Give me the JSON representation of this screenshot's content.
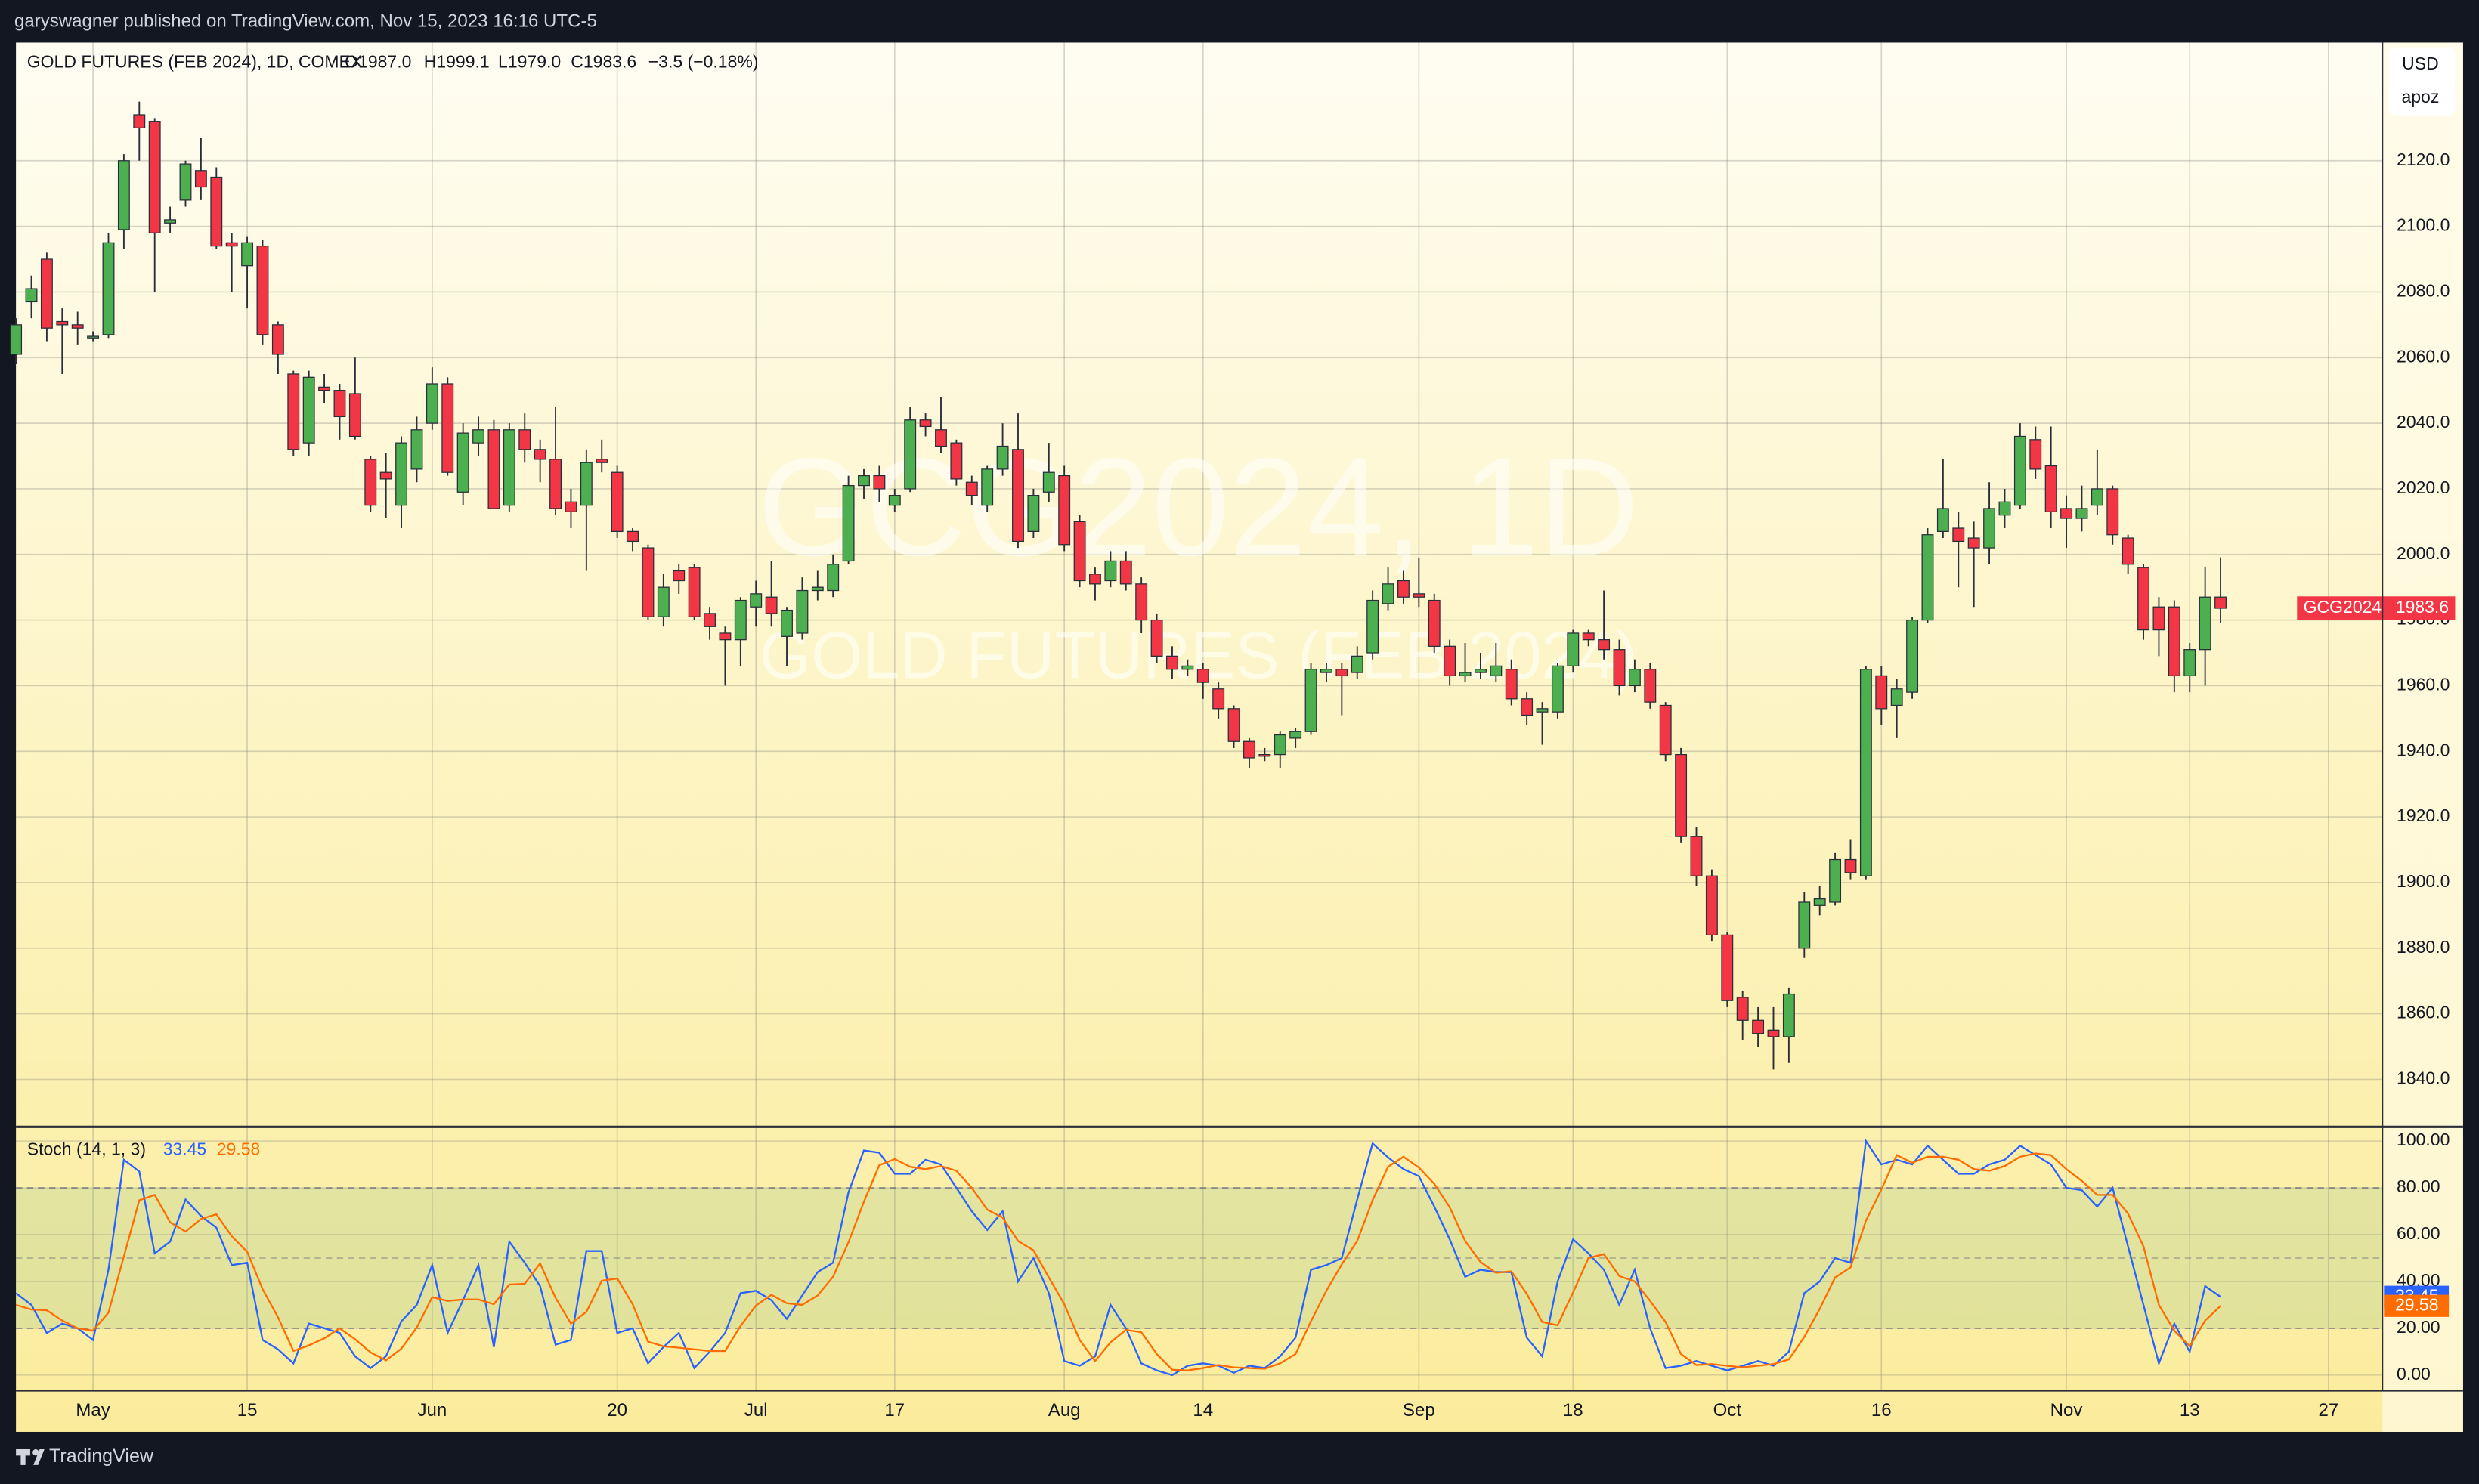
{
  "header": {
    "text": "garyswagner published on TradingView.com, Nov 15, 2023 16:16 UTC-5"
  },
  "chart_data": [
    {
      "type": "candlestick",
      "title": "GOLD FUTURES (FEB 2024), 1D, COMEX",
      "legend": [
        "O1987.0",
        "H1999.1",
        "L1979.0",
        "C1983.6",
        "−3.5 (−0.18%)"
      ],
      "watermark": [
        "GCG2024, 1D",
        "GOLD FUTURES (FEB 2024)"
      ],
      "currency": "USD",
      "scale_label": "apoz",
      "symbol": "GCG2024",
      "up_color": "#4caf50",
      "down_color": "#f23645",
      "open": [
        2061,
        2077,
        2090,
        2071,
        2070,
        2066,
        2067,
        2099,
        2134,
        2132,
        2101,
        2108,
        2117,
        2115,
        2095,
        2088,
        2094,
        2070,
        2055,
        2034,
        2051,
        2050,
        2049,
        2029,
        2025,
        2015,
        2026,
        2040,
        2052,
        2019,
        2034,
        2038,
        2015,
        2038,
        2032,
        2029,
        2016,
        2015,
        2029,
        2025,
        2007,
        2002,
        1981,
        1995,
        1996,
        1982,
        1976,
        1974,
        1984,
        1987,
        1975,
        1976,
        1989,
        1989,
        1998,
        2021,
        2024,
        2015,
        2020,
        2041,
        2038,
        2034,
        2022,
        2015,
        2026,
        2032,
        2007,
        2019,
        2024,
        2010,
        1994,
        1992,
        1998,
        1991,
        1980,
        1969,
        1965,
        1965,
        1959,
        1953,
        1943,
        1939,
        1939,
        1944,
        1946,
        1964,
        1965,
        1964,
        1970,
        1985,
        1992,
        1988,
        1986,
        1972,
        1963,
        1964,
        1963,
        1965,
        1956,
        1952,
        1952,
        1966,
        1976,
        1974,
        1971,
        1960,
        1965,
        1954,
        1939,
        1914,
        1902,
        1884,
        1865,
        1858,
        1855,
        1853,
        1880,
        1893,
        1894,
        1907,
        1902,
        1963,
        1954,
        1958,
        1980,
        2007,
        2008,
        2005,
        2002,
        2012,
        2015,
        2035,
        2027,
        2014,
        2011,
        2015,
        2020,
        2005,
        1996,
        1984,
        1984,
        1963,
        1971,
        1987.0
      ],
      "high": [
        2072,
        2085,
        2092,
        2075,
        2074,
        2068,
        2098,
        2122,
        2138,
        2133,
        2106,
        2120,
        2127,
        2118,
        2098,
        2097,
        2096,
        2071,
        2056,
        2056,
        2055,
        2052,
        2060,
        2030,
        2031,
        2036,
        2042,
        2057,
        2054,
        2040,
        2042,
        2041,
        2040,
        2043,
        2035,
        2045,
        2020,
        2032,
        2035,
        2027,
        2008,
        2003,
        1994,
        1997,
        1997,
        1984,
        1978,
        1987,
        1992,
        1998,
        1984,
        1993,
        1995,
        2000,
        2024,
        2026,
        2027,
        2020,
        2045,
        2043,
        2048,
        2035,
        2024,
        2027,
        2040,
        2043,
        2020,
        2034,
        2027,
        2012,
        1996,
        2001,
        2001,
        1993,
        1982,
        1972,
        1968,
        1967,
        1961,
        1954,
        1944,
        1941,
        1946,
        1947,
        1967,
        1967,
        1967,
        1972,
        1989,
        1996,
        1995,
        1999,
        1988,
        1974,
        1973,
        1970,
        1973,
        1968,
        1958,
        1955,
        1967,
        1977,
        1977,
        1989,
        1974,
        1968,
        1967,
        1955,
        1941,
        1917,
        1904,
        1885,
        1867,
        1862,
        1862,
        1868,
        1897,
        1899,
        1909,
        1913,
        1966,
        1966,
        1962,
        1981,
        2008,
        2029,
        2013,
        2010,
        2022,
        2020,
        2040,
        2039,
        2039,
        2018,
        2021,
        2032,
        2021,
        2006,
        1997,
        1987,
        1986,
        1973,
        1996,
        1999.1
      ],
      "low": [
        2058,
        2072,
        2065,
        2055,
        2064,
        2065,
        2066,
        2093,
        2120,
        2080,
        2098,
        2106,
        2108,
        2093,
        2080,
        2075,
        2064,
        2055,
        2030,
        2030,
        2046,
        2035,
        2035,
        2013,
        2011,
        2008,
        2022,
        2038,
        2024,
        2015,
        2030,
        2014,
        2013,
        2028,
        2022,
        2012,
        2008,
        1995,
        2025,
        2005,
        2001,
        1980,
        1978,
        1988,
        1980,
        1974,
        1960,
        1966,
        1978,
        1978,
        1966,
        1974,
        1986,
        1987,
        1997,
        2017,
        2016,
        2013,
        2019,
        2036,
        2031,
        2021,
        2015,
        2013,
        2024,
        2002,
        2005,
        2016,
        2001,
        1990,
        1986,
        1990,
        1989,
        1976,
        1967,
        1962,
        1963,
        1956,
        1950,
        1941,
        1935,
        1937,
        1935,
        1941,
        1945,
        1961,
        1951,
        1962,
        1968,
        1983,
        1985,
        1984,
        1970,
        1960,
        1961,
        1962,
        1961,
        1954,
        1948,
        1942,
        1950,
        1964,
        1972,
        1968,
        1957,
        1958,
        1953,
        1937,
        1912,
        1899,
        1882,
        1862,
        1852,
        1850,
        1843,
        1845,
        1877,
        1890,
        1893,
        1901,
        1901,
        1948,
        1944,
        1956,
        1979,
        2005,
        1990,
        1984,
        1997,
        2008,
        2014,
        2023,
        2008,
        2002,
        2007,
        2012,
        2003,
        1994,
        1974,
        1969,
        1958,
        1958,
        1960,
        1979.0
      ],
      "close": [
        2070,
        2081,
        2069,
        2070,
        2069,
        2066.5,
        2095,
        2120,
        2130,
        2098,
        2102,
        2119,
        2112,
        2094,
        2094,
        2095,
        2067,
        2061,
        2032,
        2054,
        2050,
        2042,
        2036,
        2015,
        2023,
        2034,
        2038,
        2052,
        2025,
        2037,
        2038,
        2014,
        2038,
        2032,
        2029,
        2014,
        2013,
        2028,
        2028,
        2007,
        2004,
        1981,
        1990,
        1992,
        1981,
        1978,
        1974,
        1986,
        1988,
        1982,
        1983,
        1989,
        1990,
        1997,
        2021,
        2024,
        2020,
        2018,
        2041,
        2039,
        2033,
        2023,
        2018,
        2026,
        2033,
        2004,
        2018,
        2025,
        2003,
        1992,
        1991,
        1998,
        1991,
        1980,
        1969,
        1965,
        1966,
        1961,
        1953,
        1943,
        1938,
        1938.5,
        1945,
        1946,
        1965,
        1965,
        1963,
        1969,
        1986,
        1991,
        1987,
        1987,
        1972,
        1963,
        1964,
        1965,
        1966,
        1956,
        1951,
        1953,
        1966,
        1976,
        1974,
        1971,
        1960,
        1965,
        1955,
        1939,
        1914,
        1902,
        1884,
        1864,
        1858,
        1854,
        1853,
        1866,
        1894,
        1895,
        1907,
        1903,
        1965,
        1953,
        1959,
        1980,
        2006,
        2014,
        2004,
        2002,
        2014,
        2016,
        2036,
        2026,
        2013,
        2011,
        2014,
        2020,
        2006,
        1997,
        1977,
        1977,
        1963,
        1971,
        1987,
        1983.6
      ],
      "xlim": [
        0,
        153.5
      ],
      "xticks": [
        {
          "value": 5,
          "label": "May"
        },
        {
          "value": 15,
          "label": "15"
        },
        {
          "value": 27,
          "label": "Jun"
        },
        {
          "value": 39,
          "label": "20"
        },
        {
          "value": 48,
          "label": "Jul"
        },
        {
          "value": 57,
          "label": "17"
        },
        {
          "value": 68,
          "label": "Aug"
        },
        {
          "value": 77,
          "label": "14"
        },
        {
          "value": 91,
          "label": "Sep"
        },
        {
          "value": 101,
          "label": "18"
        },
        {
          "value": 111,
          "label": "Oct"
        },
        {
          "value": 121,
          "label": "16"
        },
        {
          "value": 133,
          "label": "Nov"
        },
        {
          "value": 141,
          "label": "13"
        },
        {
          "value": 150,
          "label": "27"
        }
      ],
      "ylim": [
        1826,
        2156
      ],
      "yticks": [
        {
          "value": 1840,
          "label": "1840.0"
        },
        {
          "value": 1860,
          "label": "1860.0"
        },
        {
          "value": 1880,
          "label": "1880.0"
        },
        {
          "value": 1900,
          "label": "1900.0"
        },
        {
          "value": 1920,
          "label": "1920.0"
        },
        {
          "value": 1940,
          "label": "1940.0"
        },
        {
          "value": 1960,
          "label": "1960.0"
        },
        {
          "value": 1980,
          "label": "1980.0"
        },
        {
          "value": 2000,
          "label": "2000.0"
        },
        {
          "value": 2020,
          "label": "2020.0"
        },
        {
          "value": 2040,
          "label": "2040.0"
        },
        {
          "value": 2060,
          "label": "2060.0"
        },
        {
          "value": 2080,
          "label": "2080.0"
        },
        {
          "value": 2100,
          "label": "2100.0"
        },
        {
          "value": 2120,
          "label": "2120.0"
        }
      ],
      "grid": true
    },
    {
      "type": "line",
      "title": "Stoch (14, 1, 3)",
      "series": [
        {
          "color": "#2962ff",
          "values": [
            35,
            30,
            18,
            22,
            20,
            15,
            45,
            92,
            87,
            52,
            57,
            75,
            68,
            63,
            47,
            48,
            15,
            11,
            5,
            22,
            20,
            18,
            8,
            3,
            8,
            23,
            30,
            47,
            18,
            32,
            47,
            12,
            57,
            48,
            38,
            13,
            15,
            53,
            53,
            18,
            20,
            5,
            12,
            18,
            3,
            10,
            18,
            35,
            36,
            32,
            24,
            34,
            44,
            48,
            78,
            96,
            95,
            86,
            86,
            92,
            90,
            80,
            70,
            62,
            70,
            40,
            50,
            35,
            6,
            4,
            8,
            30,
            20,
            5,
            2,
            0,
            4,
            5,
            4,
            1,
            4,
            3,
            8,
            16,
            45,
            47,
            50,
            75,
            99,
            93,
            88,
            85,
            72,
            58,
            42,
            45,
            44,
            44,
            16,
            8,
            40,
            58,
            52,
            45,
            30,
            45,
            20,
            3,
            4,
            6,
            4,
            2,
            4,
            6,
            4,
            10,
            35,
            40,
            50,
            48,
            100,
            90,
            92,
            90,
            98,
            92,
            86,
            86,
            90,
            92,
            98,
            94,
            90,
            80,
            79,
            72,
            80,
            55,
            30,
            5,
            22,
            10,
            38,
            33.45
          ]
        },
        {
          "color": "#ff6d00",
          "values": [
            30,
            28,
            27.7,
            23.3,
            20,
            19,
            26.7,
            50.7,
            74.7,
            77,
            65.3,
            61.3,
            66.7,
            68.7,
            59.3,
            52.7,
            36.7,
            24.7,
            10.3,
            12.7,
            15.7,
            20,
            15.3,
            9.7,
            6.3,
            11.3,
            20.3,
            33.3,
            31.7,
            32.3,
            32.3,
            30.3,
            38.7,
            39,
            47.7,
            33,
            22,
            27,
            40.3,
            41.3,
            30.3,
            14.3,
            12.3,
            11.7,
            11,
            10.3,
            10.3,
            21,
            29.7,
            34.3,
            30.7,
            30,
            34,
            42,
            56.7,
            74,
            89.7,
            92.3,
            89,
            88,
            89.3,
            87.3,
            80,
            70.7,
            67.3,
            57.3,
            53.3,
            41.7,
            30.3,
            15,
            6,
            14,
            19.3,
            18.3,
            9,
            2.3,
            2,
            3,
            4.3,
            3.3,
            3,
            2.7,
            5,
            9,
            23,
            36,
            47.3,
            57.3,
            74.7,
            89,
            93.3,
            88.7,
            81.7,
            71.7,
            57.3,
            48.3,
            43.7,
            44.3,
            34.7,
            22.7,
            21.3,
            35.3,
            50,
            51.7,
            42.3,
            40,
            31.7,
            22.7,
            9,
            4.3,
            4.7,
            4,
            3.3,
            4,
            4.7,
            6.7,
            16.3,
            28.3,
            41.7,
            46,
            66,
            79.3,
            94,
            90.7,
            93.3,
            93.3,
            92,
            88,
            87.3,
            89.3,
            93.3,
            94.7,
            94,
            88,
            83,
            77,
            77,
            69,
            55,
            30,
            19,
            12.3,
            23.3,
            29.58
          ]
        }
      ],
      "ylim": [
        -6.7,
        105.4
      ],
      "yticks": [
        {
          "value": 0,
          "label": "0.00"
        },
        {
          "value": 20,
          "label": "20.00"
        },
        {
          "value": 40,
          "label": "40.00"
        },
        {
          "value": 60,
          "label": "60.00"
        },
        {
          "value": 80,
          "label": "80.00"
        },
        {
          "value": 100,
          "label": "100.00"
        }
      ],
      "band": [
        20,
        80
      ],
      "midline": 50,
      "grid": true
    }
  ],
  "footer": {
    "brand": "TradingView"
  }
}
